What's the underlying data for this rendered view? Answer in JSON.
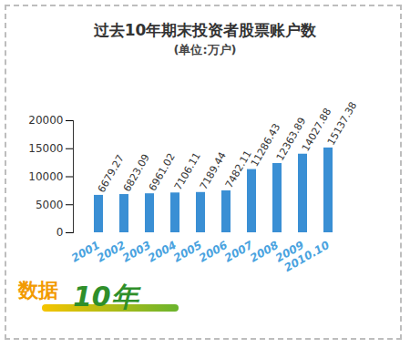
{
  "chart_data": {
    "type": "bar",
    "title": "过去10年期末投资者股票账户数",
    "subtitle": "(单位:万户)",
    "categories": [
      "2001",
      "2002",
      "2003",
      "2004",
      "2005",
      "2006",
      "2007",
      "2008",
      "2009",
      "2010.10"
    ],
    "values": [
      6679.27,
      6823.09,
      6961.02,
      7106.11,
      7189.44,
      7482.11,
      11286.43,
      12363.89,
      14027.88,
      15137.38
    ],
    "color": "#3a8fd4",
    "ylim": [
      0,
      20000
    ],
    "yticks": [
      0,
      5000,
      10000,
      15000,
      20000
    ],
    "grid": false,
    "data_labels": true,
    "annotations": [
      "数据",
      "10年"
    ]
  }
}
